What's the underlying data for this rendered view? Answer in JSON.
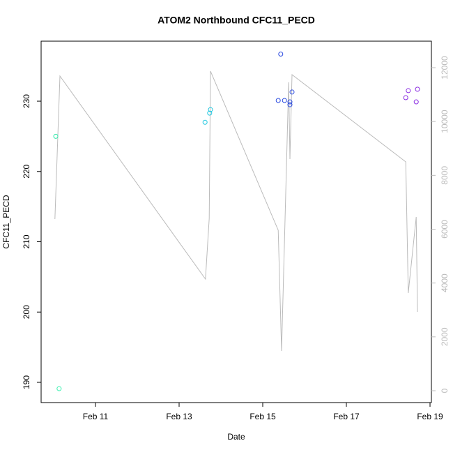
{
  "chart_data": {
    "type": "scatter-line",
    "title": "ATOM2 Northbound CFC11_PECD",
    "xlabel": "Date",
    "ylabel": "CFC11_PECD",
    "xlim": [
      9.7,
      19.033
    ],
    "xticks": [
      {
        "value": 11,
        "label": "Feb 11"
      },
      {
        "value": 13,
        "label": "Feb 13"
      },
      {
        "value": 15,
        "label": "Feb 15"
      },
      {
        "value": 17,
        "label": "Feb 17"
      },
      {
        "value": 19,
        "label": "Feb 19"
      }
    ],
    "ylim": [
      187.12,
      238.54
    ],
    "yticks": [
      190,
      200,
      210,
      220,
      230
    ],
    "y2lim": [
      -441,
      12985
    ],
    "y2ticks": [
      0,
      2000,
      4000,
      6000,
      8000,
      10000,
      12000
    ],
    "y2color": "#bbbbbb",
    "points": {
      "x": [
        10.05,
        10.13,
        13.62,
        13.73,
        13.75,
        15.43,
        15.37,
        15.52,
        15.65,
        15.65,
        15.7,
        18.42,
        18.48,
        18.67,
        18.7
      ],
      "values": [
        225.0,
        189.1,
        227.0,
        228.3,
        228.8,
        236.7,
        230.1,
        230.1,
        229.9,
        229.5,
        231.3,
        230.5,
        231.5,
        229.9,
        231.7
      ],
      "colors": [
        "#2ee8a8",
        "#3cf0b0",
        "#22c8e0",
        "#22c8e0",
        "#22c8e0",
        "#2a4ae0",
        "#2a4ae0",
        "#2a4ae0",
        "#2a4ae0",
        "#2a4ae0",
        "#2a4ae0",
        "#8a2be2",
        "#8a2be2",
        "#8a2be2",
        "#8a2be2"
      ]
    },
    "line": {
      "axis": "y2",
      "color": "#bbbbbb",
      "x": [
        10.03,
        10.15,
        13.63,
        13.72,
        13.75,
        15.37,
        15.45,
        15.62,
        15.65,
        15.7,
        18.42,
        18.48,
        18.67,
        18.7
      ],
      "values": [
        6376,
        11690,
        4147,
        6402,
        11871,
        5962,
        1477,
        11457,
        8605,
        11742,
        8502,
        3629,
        6454,
        2929
      ]
    }
  }
}
